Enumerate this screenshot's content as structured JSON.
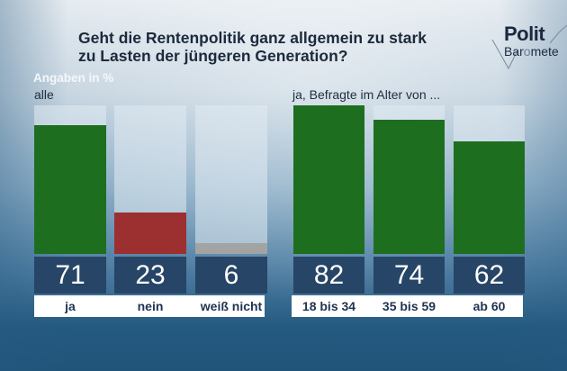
{
  "title_line1": "Geht die Rentenpolitik ganz allgemein zu stark",
  "title_line2": "zu Lasten der jüngeren Generation?",
  "logo": {
    "word1": "Polit",
    "word2_pre": "Bar",
    "word2_o": "o",
    "word2_post": "mete"
  },
  "unit_label": "Angaben in %",
  "colors": {
    "green": "#1e6e1f",
    "red": "#9c2f2f",
    "gray": "#a3a3a3",
    "numbox": "#274566"
  },
  "chart_data": [
    {
      "type": "bar",
      "title": "alle",
      "ylabel": "Angaben in %",
      "categories": [
        "ja",
        "nein",
        "weiß nicht"
      ],
      "values": [
        71,
        23,
        6
      ],
      "colors": [
        "#1e6e1f",
        "#9c2f2f",
        "#a3a3a3"
      ],
      "ylim": [
        0,
        82
      ]
    },
    {
      "type": "bar",
      "title": "ja, Befragte im Alter von ...",
      "ylabel": "Angaben in %",
      "categories": [
        "18 bis 34",
        "35 bis 59",
        "ab 60"
      ],
      "values": [
        82,
        74,
        62
      ],
      "colors": [
        "#1e6e1f",
        "#1e6e1f",
        "#1e6e1f"
      ],
      "ylim": [
        0,
        82
      ]
    }
  ]
}
